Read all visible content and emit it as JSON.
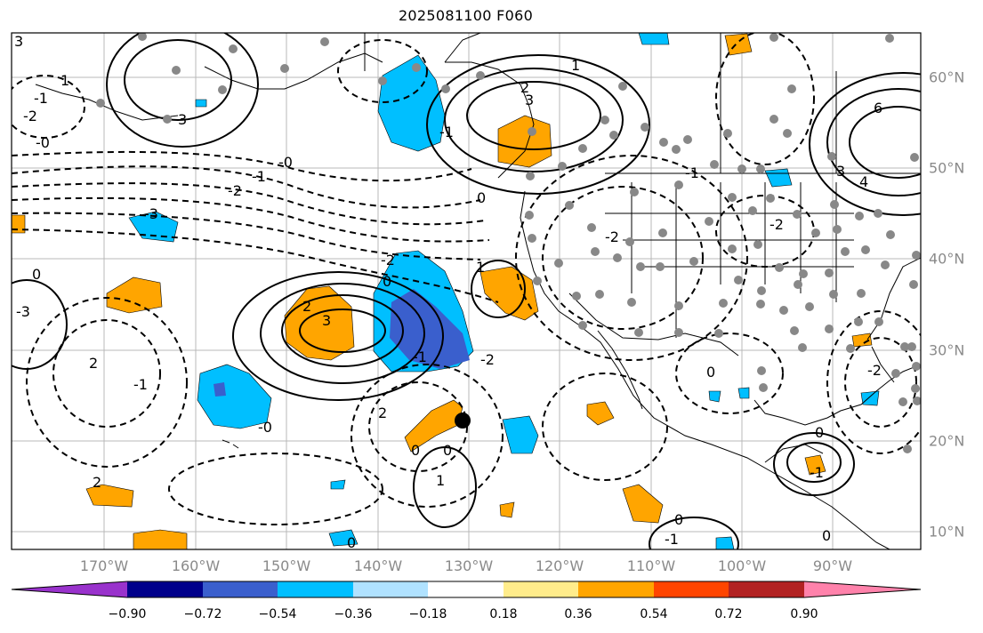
{
  "title": "2025081100 F060",
  "lon_labels": [
    "170°W",
    "160°W",
    "150°W",
    "140°W",
    "130°W",
    "120°W",
    "110°W",
    "100°W",
    "90°W"
  ],
  "lat_labels": [
    "60°N",
    "50°N",
    "40°N",
    "30°N",
    "20°N",
    "10°N"
  ],
  "colorbar": {
    "ticks": [
      "−0.90",
      "−0.72",
      "−0.54",
      "−0.36",
      "−0.18",
      "0.18",
      "0.36",
      "0.54",
      "0.72",
      "0.90"
    ],
    "colors": [
      "#9932cc",
      "#00008b",
      "#3a5fcd",
      "#00bfff",
      "#b0e2ff",
      "#ffffff",
      "#ffec8b",
      "#ffa500",
      "#ff4500",
      "#b22222",
      "#ff82ab"
    ]
  },
  "fill_colors": {
    "orange": "#ffa500",
    "lightblue": "#00bfff",
    "blue": "#3a5fcd",
    "station": "#888888"
  },
  "contour_labels": [
    "3",
    "1",
    "-1",
    "-2",
    "-0",
    "-0",
    "-1",
    "-2",
    "3",
    "-3",
    "0",
    "-1",
    "-3",
    "2",
    "2",
    "3",
    "-2",
    "1",
    "-2",
    "-1",
    "0",
    "2",
    "2",
    "-0",
    "-1",
    "-2",
    "-2",
    "0",
    "-1",
    "0",
    "1",
    "-1",
    "0",
    "6",
    "4",
    "3",
    "3",
    "2",
    "0",
    "-1",
    "0",
    "-2",
    "0",
    "1",
    "0",
    "0"
  ]
}
